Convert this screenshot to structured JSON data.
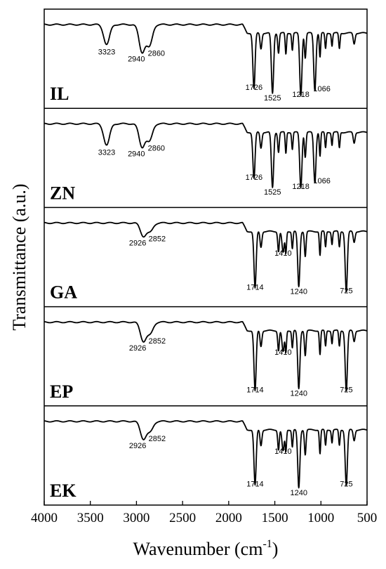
{
  "chart_data": {
    "type": "line",
    "xlabel": "Wavenumber (cm",
    "xlabel_sup": "-1",
    "xlabel_close": ")",
    "ylabel": "Transmittance (a.u.)",
    "xlim": [
      4000,
      500
    ],
    "xticks": [
      "4000",
      "3500",
      "3000",
      "2500",
      "2000",
      "1500",
      "1000",
      "500"
    ],
    "xtick_values": [
      4000,
      3500,
      3000,
      2500,
      2000,
      1500,
      1000,
      500
    ],
    "panels": [
      {
        "name": "IL",
        "peaks": [
          {
            "x": 3323,
            "label": "3323",
            "depth": 0.28
          },
          {
            "x": 2940,
            "label": "2940",
            "depth": 0.38
          },
          {
            "x": 2860,
            "label": "2860",
            "depth": 0.3
          },
          {
            "x": 1726,
            "label": "1726",
            "depth": 0.78
          },
          {
            "x": 1525,
            "label": "1525",
            "depth": 0.85
          },
          {
            "x": 1218,
            "label": "1218",
            "depth": 0.88
          },
          {
            "x": 1066,
            "label": "1066",
            "depth": 0.8
          }
        ]
      },
      {
        "name": "ZN",
        "peaks": [
          {
            "x": 3323,
            "label": "3323",
            "depth": 0.3
          },
          {
            "x": 2940,
            "label": "2940",
            "depth": 0.32
          },
          {
            "x": 2860,
            "label": "2860",
            "depth": 0.24
          },
          {
            "x": 1726,
            "label": "1726",
            "depth": 0.65
          },
          {
            "x": 1525,
            "label": "1525",
            "depth": 0.78
          },
          {
            "x": 1218,
            "label": "1218",
            "depth": 0.78
          },
          {
            "x": 1066,
            "label": "1066",
            "depth": 0.7
          }
        ]
      },
      {
        "name": "GA",
        "peaks": [
          {
            "x": 2926,
            "label": "2926",
            "depth": 0.18
          },
          {
            "x": 2852,
            "label": "2852",
            "depth": 0.12
          },
          {
            "x": 1714,
            "label": "1714",
            "depth": 0.8
          },
          {
            "x": 1410,
            "label": "1410",
            "depth": 0.3
          },
          {
            "x": 1240,
            "label": "1240",
            "depth": 0.78
          },
          {
            "x": 725,
            "label": "725",
            "depth": 0.85
          }
        ]
      },
      {
        "name": "EP",
        "peaks": [
          {
            "x": 2926,
            "label": "2926",
            "depth": 0.26
          },
          {
            "x": 2852,
            "label": "2852",
            "depth": 0.16
          },
          {
            "x": 1714,
            "label": "1714",
            "depth": 0.85
          },
          {
            "x": 1410,
            "label": "1410",
            "depth": 0.3
          },
          {
            "x": 1240,
            "label": "1240",
            "depth": 0.82
          },
          {
            "x": 725,
            "label": "725",
            "depth": 0.85
          }
        ]
      },
      {
        "name": "EK",
        "peaks": [
          {
            "x": 2926,
            "label": "2926",
            "depth": 0.24
          },
          {
            "x": 2852,
            "label": "2852",
            "depth": 0.14
          },
          {
            "x": 1714,
            "label": "1714",
            "depth": 0.78
          },
          {
            "x": 1410,
            "label": "1410",
            "depth": 0.3
          },
          {
            "x": 1240,
            "label": "1240",
            "depth": 0.82
          },
          {
            "x": 725,
            "label": "725",
            "depth": 0.78
          }
        ]
      }
    ]
  }
}
